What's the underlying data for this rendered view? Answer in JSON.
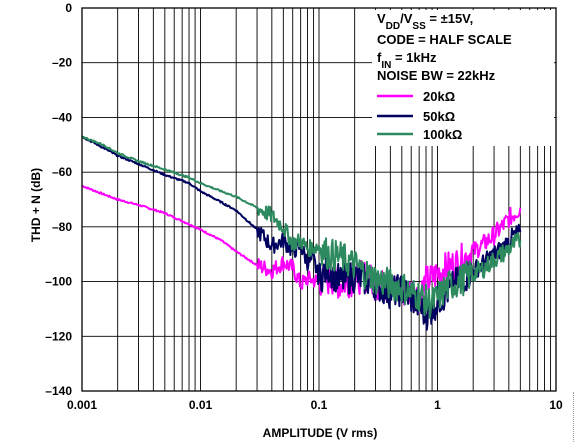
{
  "chart_data": {
    "type": "line",
    "title": "",
    "xlabel": "AMPLITUDE (V rms)",
    "ylabel": "THD + N (dB)",
    "xscale": "log",
    "xlim": [
      0.001,
      10
    ],
    "ylim": [
      -140,
      0
    ],
    "grid": true,
    "x_ticks": [
      {
        "value": 0.001,
        "label": "0.001"
      },
      {
        "value": 0.01,
        "label": "0.01"
      },
      {
        "value": 0.1,
        "label": "0.1"
      },
      {
        "value": 1,
        "label": "1"
      },
      {
        "value": 10,
        "label": "10"
      }
    ],
    "y_ticks": [
      {
        "value": 0,
        "label": "0"
      },
      {
        "value": -20,
        "label": "–20"
      },
      {
        "value": -40,
        "label": "–40"
      },
      {
        "value": -60,
        "label": "–60"
      },
      {
        "value": -80,
        "label": "–80"
      },
      {
        "value": -100,
        "label": "–100"
      },
      {
        "value": -120,
        "label": "–120"
      },
      {
        "value": -140,
        "label": "–140"
      }
    ],
    "annotation": {
      "line1_main": "V",
      "line1_sub1": "DD",
      "line1_mid": "/V",
      "line1_sub2": "SS",
      "line1_end": " = ±15V,",
      "line2": "CODE = HALF SCALE",
      "line3_main": "f",
      "line3_sub": "IN",
      "line3_end": " = 1kHz",
      "line4": "NOISE BW = 22kHz"
    },
    "legend_position": "top-right",
    "series": [
      {
        "name": "20kΩ",
        "color": "#ff00ff",
        "points": [
          [
            0.001,
            -65
          ],
          [
            0.0015,
            -68
          ],
          [
            0.002,
            -70
          ],
          [
            0.003,
            -72
          ],
          [
            0.005,
            -75
          ],
          [
            0.008,
            -79
          ],
          [
            0.01,
            -81
          ],
          [
            0.015,
            -85
          ],
          [
            0.02,
            -89
          ],
          [
            0.03,
            -94
          ],
          [
            0.04,
            -96
          ],
          [
            0.05,
            -93
          ],
          [
            0.06,
            -95
          ],
          [
            0.07,
            -101
          ],
          [
            0.08,
            -99
          ],
          [
            0.1,
            -100
          ],
          [
            0.13,
            -99
          ],
          [
            0.15,
            -101
          ],
          [
            0.2,
            -99
          ],
          [
            0.25,
            -98
          ],
          [
            0.3,
            -101
          ],
          [
            0.4,
            -102
          ],
          [
            0.5,
            -104
          ],
          [
            0.6,
            -103
          ],
          [
            0.7,
            -106
          ],
          [
            0.8,
            -100
          ],
          [
            0.9,
            -99
          ],
          [
            1,
            -97
          ],
          [
            1.2,
            -95
          ],
          [
            1.5,
            -93
          ],
          [
            2,
            -89
          ],
          [
            2.5,
            -86
          ],
          [
            3,
            -83
          ],
          [
            3.5,
            -80
          ],
          [
            4,
            -77
          ],
          [
            4.5,
            -75
          ],
          [
            5,
            -73
          ]
        ]
      },
      {
        "name": "50kΩ",
        "color": "#00005e",
        "points": [
          [
            0.001,
            -47
          ],
          [
            0.0015,
            -51
          ],
          [
            0.002,
            -54
          ],
          [
            0.003,
            -57
          ],
          [
            0.005,
            -61
          ],
          [
            0.008,
            -64
          ],
          [
            0.01,
            -67
          ],
          [
            0.015,
            -71
          ],
          [
            0.02,
            -74
          ],
          [
            0.03,
            -81
          ],
          [
            0.04,
            -87
          ],
          [
            0.05,
            -85
          ],
          [
            0.06,
            -89
          ],
          [
            0.07,
            -87
          ],
          [
            0.08,
            -93
          ],
          [
            0.09,
            -92
          ],
          [
            0.1,
            -99
          ],
          [
            0.12,
            -95
          ],
          [
            0.15,
            -100
          ],
          [
            0.2,
            -98
          ],
          [
            0.3,
            -101
          ],
          [
            0.4,
            -104
          ],
          [
            0.5,
            -103
          ],
          [
            0.6,
            -106
          ],
          [
            0.7,
            -109
          ],
          [
            0.8,
            -112
          ],
          [
            0.9,
            -110
          ],
          [
            1,
            -107
          ],
          [
            1.2,
            -104
          ],
          [
            1.5,
            -100
          ],
          [
            2,
            -96
          ],
          [
            2.5,
            -93
          ],
          [
            3,
            -90
          ],
          [
            3.5,
            -88
          ],
          [
            4,
            -85
          ],
          [
            4.5,
            -83
          ],
          [
            5,
            -82
          ]
        ]
      },
      {
        "name": "100kΩ",
        "color": "#2d8a5e",
        "points": [
          [
            0.001,
            -47
          ],
          [
            0.0015,
            -50
          ],
          [
            0.002,
            -53
          ],
          [
            0.003,
            -56
          ],
          [
            0.005,
            -59
          ],
          [
            0.008,
            -62
          ],
          [
            0.01,
            -64
          ],
          [
            0.015,
            -67
          ],
          [
            0.02,
            -69
          ],
          [
            0.03,
            -73
          ],
          [
            0.04,
            -76
          ],
          [
            0.05,
            -80
          ],
          [
            0.06,
            -86
          ],
          [
            0.07,
            -85
          ],
          [
            0.08,
            -88
          ],
          [
            0.1,
            -87
          ],
          [
            0.12,
            -90
          ],
          [
            0.15,
            -91
          ],
          [
            0.2,
            -94
          ],
          [
            0.25,
            -97
          ],
          [
            0.3,
            -99
          ],
          [
            0.4,
            -101
          ],
          [
            0.5,
            -102
          ],
          [
            0.6,
            -104
          ],
          [
            0.7,
            -105
          ],
          [
            0.8,
            -107
          ],
          [
            0.9,
            -108
          ],
          [
            1,
            -106
          ],
          [
            1.2,
            -102
          ],
          [
            1.5,
            -100
          ],
          [
            2,
            -97
          ],
          [
            2.5,
            -95
          ],
          [
            3,
            -92
          ],
          [
            3.5,
            -90
          ],
          [
            4,
            -88
          ],
          [
            4.5,
            -86
          ],
          [
            5,
            -85
          ]
        ]
      }
    ]
  }
}
